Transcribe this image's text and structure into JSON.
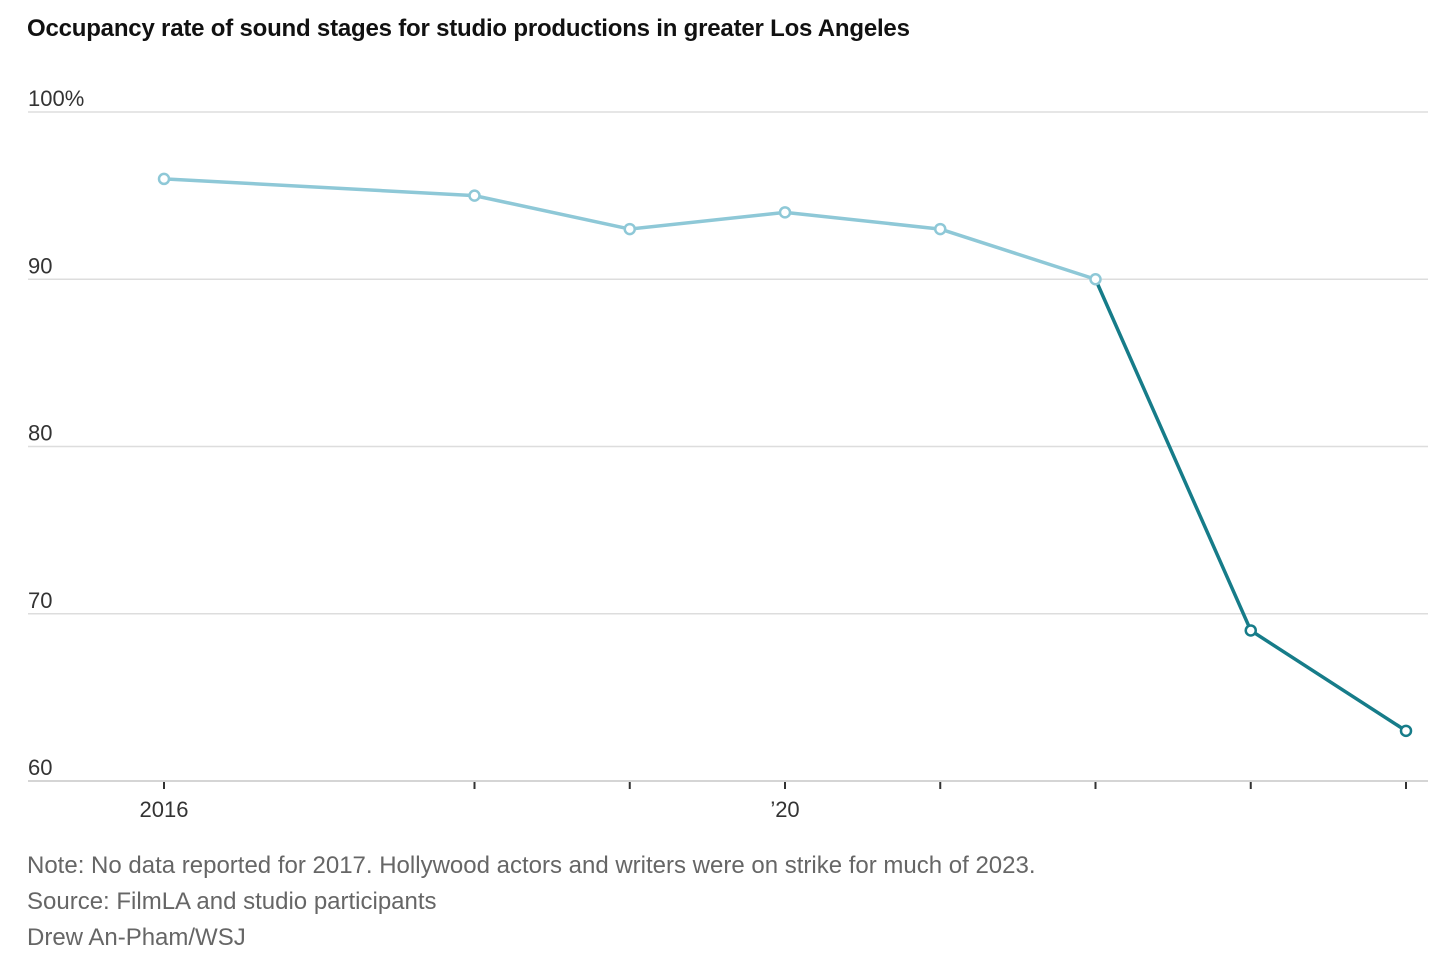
{
  "chart_data": {
    "type": "line",
    "title": "Occupancy rate of sound stages for studio productions in greater Los Angeles",
    "xlabel": "",
    "ylabel": "",
    "x": [
      2016,
      2018,
      2019,
      2020,
      2021,
      2022,
      2023,
      2024
    ],
    "series": [
      {
        "name": "Occupancy rate",
        "values": [
          96,
          95,
          93,
          94,
          93,
          90,
          69,
          63
        ]
      }
    ],
    "highlight_from_year": 2022,
    "xlim": [
      2016,
      2024
    ],
    "ylim": [
      60,
      100
    ],
    "y_ticks": [
      {
        "value": 100,
        "label": "100%"
      },
      {
        "value": 90,
        "label": "90"
      },
      {
        "value": 80,
        "label": "80"
      },
      {
        "value": 70,
        "label": "70"
      },
      {
        "value": 60,
        "label": "60"
      }
    ],
    "x_ticks": [
      2016,
      2018,
      2019,
      2020,
      2021,
      2022,
      2023,
      2024
    ],
    "x_tick_labels": [
      {
        "value": 2016,
        "label": "2016"
      },
      {
        "value": 2020,
        "label": "’20"
      }
    ],
    "grid": true,
    "colors": {
      "line": "#8ec8d7",
      "highlight": "#167c89",
      "grid": "#dddddd",
      "axis": "#d5d5d5",
      "tick": "#333333"
    }
  },
  "notes": {
    "note": "Note: No data reported for 2017. Hollywood actors and writers were on strike for much of 2023.",
    "source": "Source: FilmLA and studio participants",
    "credit": "Drew An-Pham/WSJ"
  }
}
